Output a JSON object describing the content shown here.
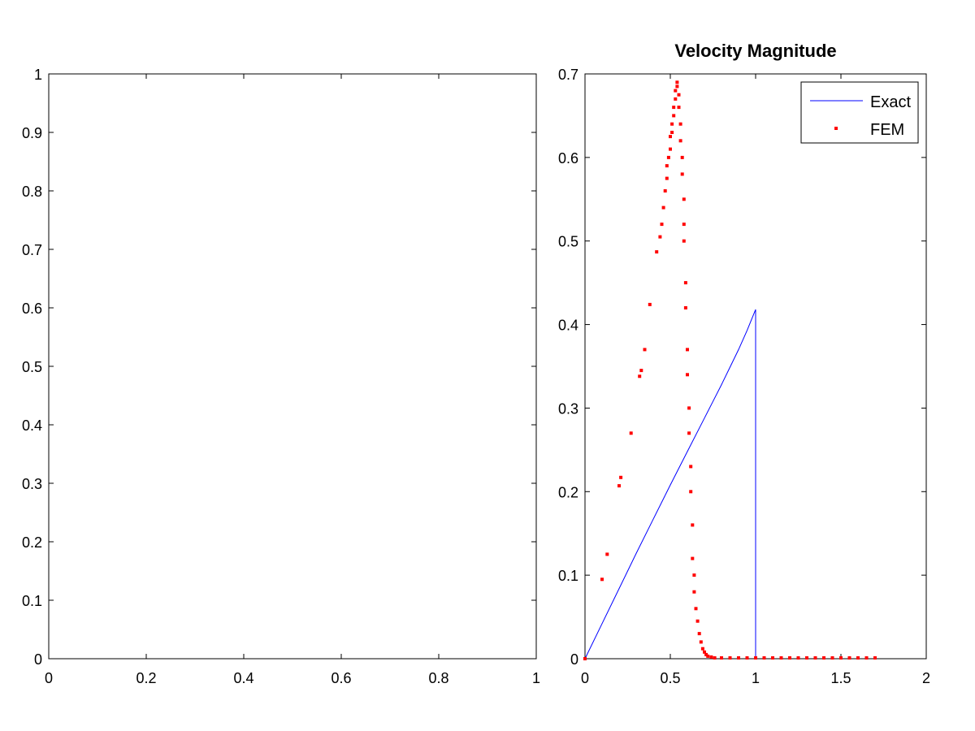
{
  "chart_data": [
    {
      "type": "line",
      "title": "",
      "xlabel": "",
      "ylabel": "",
      "xlim": [
        0,
        1
      ],
      "ylim": [
        0,
        1
      ],
      "xticks": [
        0,
        0.2,
        0.4,
        0.6,
        0.8,
        1
      ],
      "xtick_labels": [
        "0",
        "0.2",
        "0.4",
        "0.6",
        "0.8",
        "1"
      ],
      "yticks": [
        0,
        0.1,
        0.2,
        0.3,
        0.4,
        0.5,
        0.6,
        0.7,
        0.8,
        0.9,
        1
      ],
      "ytick_labels": [
        "0",
        "0.1",
        "0.2",
        "0.3",
        "0.4",
        "0.5",
        "0.6",
        "0.7",
        "0.8",
        "0.9",
        "1"
      ],
      "grid": false,
      "series": []
    },
    {
      "type": "scatter",
      "title": "Velocity Magnitude",
      "xlabel": "",
      "ylabel": "",
      "xlim": [
        0,
        2
      ],
      "ylim": [
        0,
        0.7
      ],
      "xticks": [
        0,
        0.5,
        1,
        1.5,
        2
      ],
      "xtick_labels": [
        "0",
        "0.5",
        "1",
        "1.5",
        "2"
      ],
      "yticks": [
        0,
        0.1,
        0.2,
        0.3,
        0.4,
        0.5,
        0.6,
        0.7
      ],
      "ytick_labels": [
        "0",
        "0.1",
        "0.2",
        "0.3",
        "0.4",
        "0.5",
        "0.6",
        "0.7"
      ],
      "grid": false,
      "legend_position": "top-right",
      "series": [
        {
          "name": "Exact",
          "kind": "line",
          "color": "#0000ff",
          "x": [
            0,
            0.1,
            0.2,
            0.3,
            0.4,
            0.5,
            0.6,
            0.7,
            0.75,
            0.8,
            0.85,
            0.9,
            0.95,
            0.98,
            1.0,
            1.0
          ],
          "y": [
            0,
            0.042,
            0.084,
            0.126,
            0.167,
            0.208,
            0.248,
            0.288,
            0.308,
            0.328,
            0.349,
            0.37,
            0.393,
            0.408,
            0.418,
            0.0
          ]
        },
        {
          "name": "FEM",
          "kind": "points",
          "color": "#ff0000",
          "x": [
            0.0,
            0.1,
            0.13,
            0.2,
            0.21,
            0.27,
            0.32,
            0.33,
            0.35,
            0.38,
            0.42,
            0.44,
            0.45,
            0.46,
            0.47,
            0.48,
            0.48,
            0.49,
            0.5,
            0.5,
            0.51,
            0.51,
            0.52,
            0.52,
            0.53,
            0.53,
            0.54,
            0.54,
            0.55,
            0.55,
            0.56,
            0.56,
            0.57,
            0.57,
            0.58,
            0.58,
            0.58,
            0.59,
            0.59,
            0.6,
            0.6,
            0.61,
            0.61,
            0.62,
            0.62,
            0.63,
            0.63,
            0.64,
            0.64,
            0.65,
            0.66,
            0.67,
            0.68,
            0.69,
            0.7,
            0.71,
            0.72,
            0.74,
            0.76,
            0.8,
            0.85,
            0.9,
            0.95,
            1.0,
            1.05,
            1.1,
            1.15,
            1.2,
            1.25,
            1.3,
            1.35,
            1.4,
            1.45,
            1.5,
            1.55,
            1.6,
            1.65,
            1.7
          ],
          "y": [
            0.0,
            0.095,
            0.125,
            0.207,
            0.217,
            0.27,
            0.338,
            0.345,
            0.37,
            0.424,
            0.487,
            0.505,
            0.52,
            0.54,
            0.56,
            0.575,
            0.59,
            0.6,
            0.61,
            0.625,
            0.63,
            0.64,
            0.65,
            0.66,
            0.67,
            0.68,
            0.69,
            0.685,
            0.675,
            0.66,
            0.64,
            0.62,
            0.6,
            0.58,
            0.55,
            0.52,
            0.5,
            0.45,
            0.42,
            0.37,
            0.34,
            0.3,
            0.27,
            0.23,
            0.2,
            0.16,
            0.12,
            0.1,
            0.08,
            0.06,
            0.045,
            0.03,
            0.02,
            0.012,
            0.008,
            0.005,
            0.003,
            0.002,
            0.001,
            0.001,
            0.001,
            0.001,
            0.001,
            0.001,
            0.001,
            0.001,
            0.001,
            0.001,
            0.001,
            0.001,
            0.001,
            0.001,
            0.001,
            0.001,
            0.001,
            0.001,
            0.001,
            0.001
          ]
        }
      ]
    }
  ]
}
